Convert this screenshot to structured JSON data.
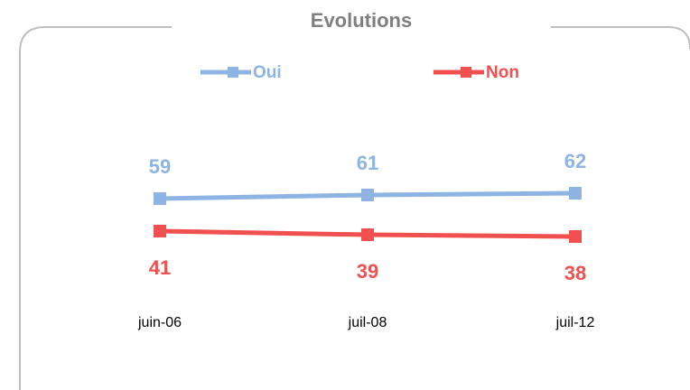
{
  "chart_data": {
    "type": "line",
    "title": "Evolutions",
    "categories": [
      "juin-06",
      "juil-08",
      "juil-12"
    ],
    "series": [
      {
        "name": "Oui",
        "color": "#8db4e2",
        "values": [
          59,
          61,
          62
        ]
      },
      {
        "name": "Non",
        "color": "#f0504f",
        "values": [
          41,
          39,
          38
        ]
      }
    ]
  }
}
